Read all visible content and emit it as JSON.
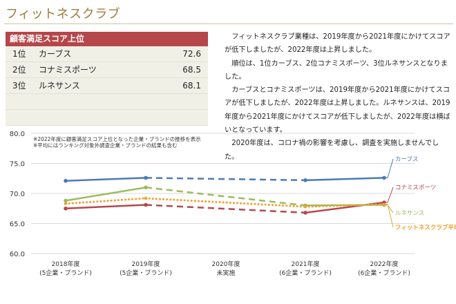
{
  "page_title": "フィットネスクラブ",
  "ranking": {
    "header": "顧客満足スコア上位",
    "rows": [
      {
        "rank": "1位",
        "name": "カーブス",
        "score": "72.6"
      },
      {
        "rank": "2位",
        "name": "コナミスポーツ",
        "score": "68.5"
      },
      {
        "rank": "3位",
        "name": "ルネサンス",
        "score": "68.1"
      }
    ]
  },
  "description": [
    "フィットネスクラブ業種は、2019年度から2021年度にかけてスコアが低下しましたが、2022年度は上昇しました。",
    "順位は、1位カーブス、2位コナミスポーツ、3位ルネサンスとなりました。",
    "カーブスとコナミスポーツは、2019年度から2021年度にかけてスコアが低下しましたが、2022年度は上昇しました。ルネサンスは、2019年度から2021年度にかけてスコアが低下しましたが、2022年度は横ばいとなっています。",
    "2020年度は、コロナ禍の影響を考慮し、調査を実施しませんでした。"
  ],
  "chart_data": {
    "type": "line",
    "notes": [
      "※2022年度に顧客満足スコア上位となった企業・ブランドの推移を表示",
      "※平均にはランキング対象外調査企業・ブランドの結果も含む"
    ],
    "categories": [
      [
        "2018年度",
        "(5企業・ブランド)"
      ],
      [
        "2019年度",
        "(5企業・ブランド)"
      ],
      [
        "2020年度",
        "未実施"
      ],
      [
        "2021年度",
        "(6企業・ブランド)"
      ],
      [
        "2022年度",
        "(6企業・ブランド)"
      ]
    ],
    "ylim": [
      60,
      80
    ],
    "yticks": [
      "60.0",
      "65.0",
      "70.0",
      "75.0",
      "80.0"
    ],
    "gap_index": 2,
    "series": [
      {
        "name": "カーブス",
        "color": "#4a7ab5",
        "style": "solid",
        "values": [
          72.1,
          72.6,
          null,
          72.2,
          72.6
        ]
      },
      {
        "name": "コナミスポーツ",
        "color": "#b5474b",
        "style": "solid",
        "values": [
          67.5,
          68.1,
          null,
          66.8,
          68.5
        ]
      },
      {
        "name": "ルネサンス",
        "color": "#9bbb59",
        "style": "solid",
        "values": [
          68.8,
          71.0,
          null,
          68.0,
          68.1
        ]
      },
      {
        "name": "フィットネスクラブ平均",
        "color": "#f0a030",
        "style": "dotted",
        "values": [
          68.3,
          69.2,
          null,
          67.8,
          68.2
        ]
      }
    ]
  }
}
